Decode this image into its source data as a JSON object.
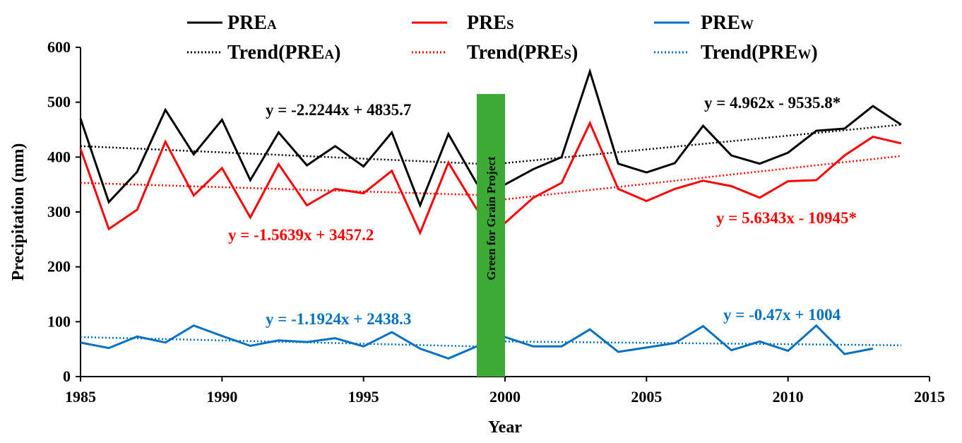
{
  "chart_data": {
    "type": "line",
    "xlabel": "Year",
    "ylabel": "Precipitation (mm)",
    "xlim": [
      1985,
      2015
    ],
    "ylim": [
      0,
      600
    ],
    "xticks": [
      "1985",
      "1990",
      "1995",
      "2000",
      "2005",
      "2010",
      "2015"
    ],
    "yticks": [
      "0",
      "100",
      "200",
      "300",
      "400",
      "500",
      "600"
    ],
    "years": [
      1985,
      1986,
      1987,
      1988,
      1989,
      1990,
      1991,
      1992,
      1993,
      1994,
      1995,
      1996,
      1997,
      1998,
      1999,
      2000,
      2001,
      2002,
      2003,
      2004,
      2005,
      2006,
      2007,
      2008,
      2009,
      2010,
      2011,
      2012,
      2013,
      2014
    ],
    "series": [
      {
        "name": "PREA",
        "legend_main": "PRE",
        "legend_sub": "A",
        "color": "#000000",
        "values": [
          470,
          318,
          373,
          486,
          405,
          468,
          358,
          445,
          385,
          420,
          383,
          445,
          312,
          442,
          352,
          350,
          378,
          400,
          556,
          388,
          372,
          389,
          457,
          403,
          388,
          408,
          448,
          452,
          493,
          459
        ]
      },
      {
        "name": "PRES",
        "legend_main": "PRE",
        "legend_sub": "S",
        "color": "#ff0000",
        "values": [
          415,
          269,
          304,
          428,
          330,
          380,
          290,
          387,
          312,
          342,
          334,
          375,
          262,
          390,
          305,
          280,
          326,
          353,
          462,
          342,
          320,
          342,
          357,
          347,
          326,
          356,
          358,
          403,
          437,
          425
        ]
      },
      {
        "name": "PREW",
        "legend_main": "PRE",
        "legend_sub": "W",
        "color": "#0070c0",
        "values": [
          62,
          52,
          73,
          62,
          93,
          74,
          56,
          66,
          63,
          70,
          55,
          81,
          51,
          33,
          55,
          72,
          55,
          55,
          86,
          45,
          53,
          61,
          92,
          48,
          64,
          47,
          93,
          41,
          51,
          null
        ]
      }
    ],
    "trends": [
      {
        "name": "Trend(PREA)",
        "color": "#000000",
        "segments": [
          {
            "x": [
              1985,
              1999
            ],
            "y": [
              420,
              388
            ]
          },
          {
            "x": [
              2000,
              2014
            ],
            "y": [
              389,
              459
            ]
          }
        ]
      },
      {
        "name": "Trend(PRES)",
        "color": "#ff0000",
        "segments": [
          {
            "x": [
              1985,
              1999
            ],
            "y": [
              353,
              331
            ]
          },
          {
            "x": [
              2000,
              2014
            ],
            "y": [
              323,
              402
            ]
          }
        ]
      },
      {
        "name": "Trend(PREW)",
        "color": "#0070c0",
        "segments": [
          {
            "x": [
              1985,
              1999
            ],
            "y": [
              72,
              55
            ]
          },
          {
            "x": [
              2000,
              2014
            ],
            "y": [
              64,
              57
            ]
          }
        ]
      }
    ],
    "legend": [
      {
        "main": "PRE",
        "sub": "A",
        "suffix": "",
        "style": "solid",
        "color": "#000000"
      },
      {
        "main": "PRE",
        "sub": "S",
        "suffix": "",
        "style": "solid",
        "color": "#ff0000"
      },
      {
        "main": "PRE",
        "sub": "W",
        "suffix": "",
        "style": "solid",
        "color": "#0070c0"
      },
      {
        "main": "Trend(PRE",
        "sub": "A",
        "suffix": ")",
        "style": "dotted",
        "color": "#000000"
      },
      {
        "main": "Trend(PRE",
        "sub": "S",
        "suffix": ")",
        "style": "dotted",
        "color": "#ff0000"
      },
      {
        "main": "Trend(PRE",
        "sub": "W",
        "suffix": ")",
        "style": "dotted",
        "color": "#0070c0"
      }
    ],
    "annotations": {
      "eq_a_pre": "y = -2.2244x + 4835.7",
      "eq_a_post": "y = 4.962x - 9535.8*",
      "eq_s_pre": "y = -1.5639x + 3457.2",
      "eq_s_post": "y = 5.6343x - 10945*",
      "eq_w_pre": "y = -1.1924x + 2438.3",
      "eq_w_post": "y = -0.47x + 1004",
      "project_label": "Green for Grain Project",
      "project_start": 1999,
      "project_end": 2000,
      "project_top": 515,
      "project_color": "#3daa35"
    }
  }
}
